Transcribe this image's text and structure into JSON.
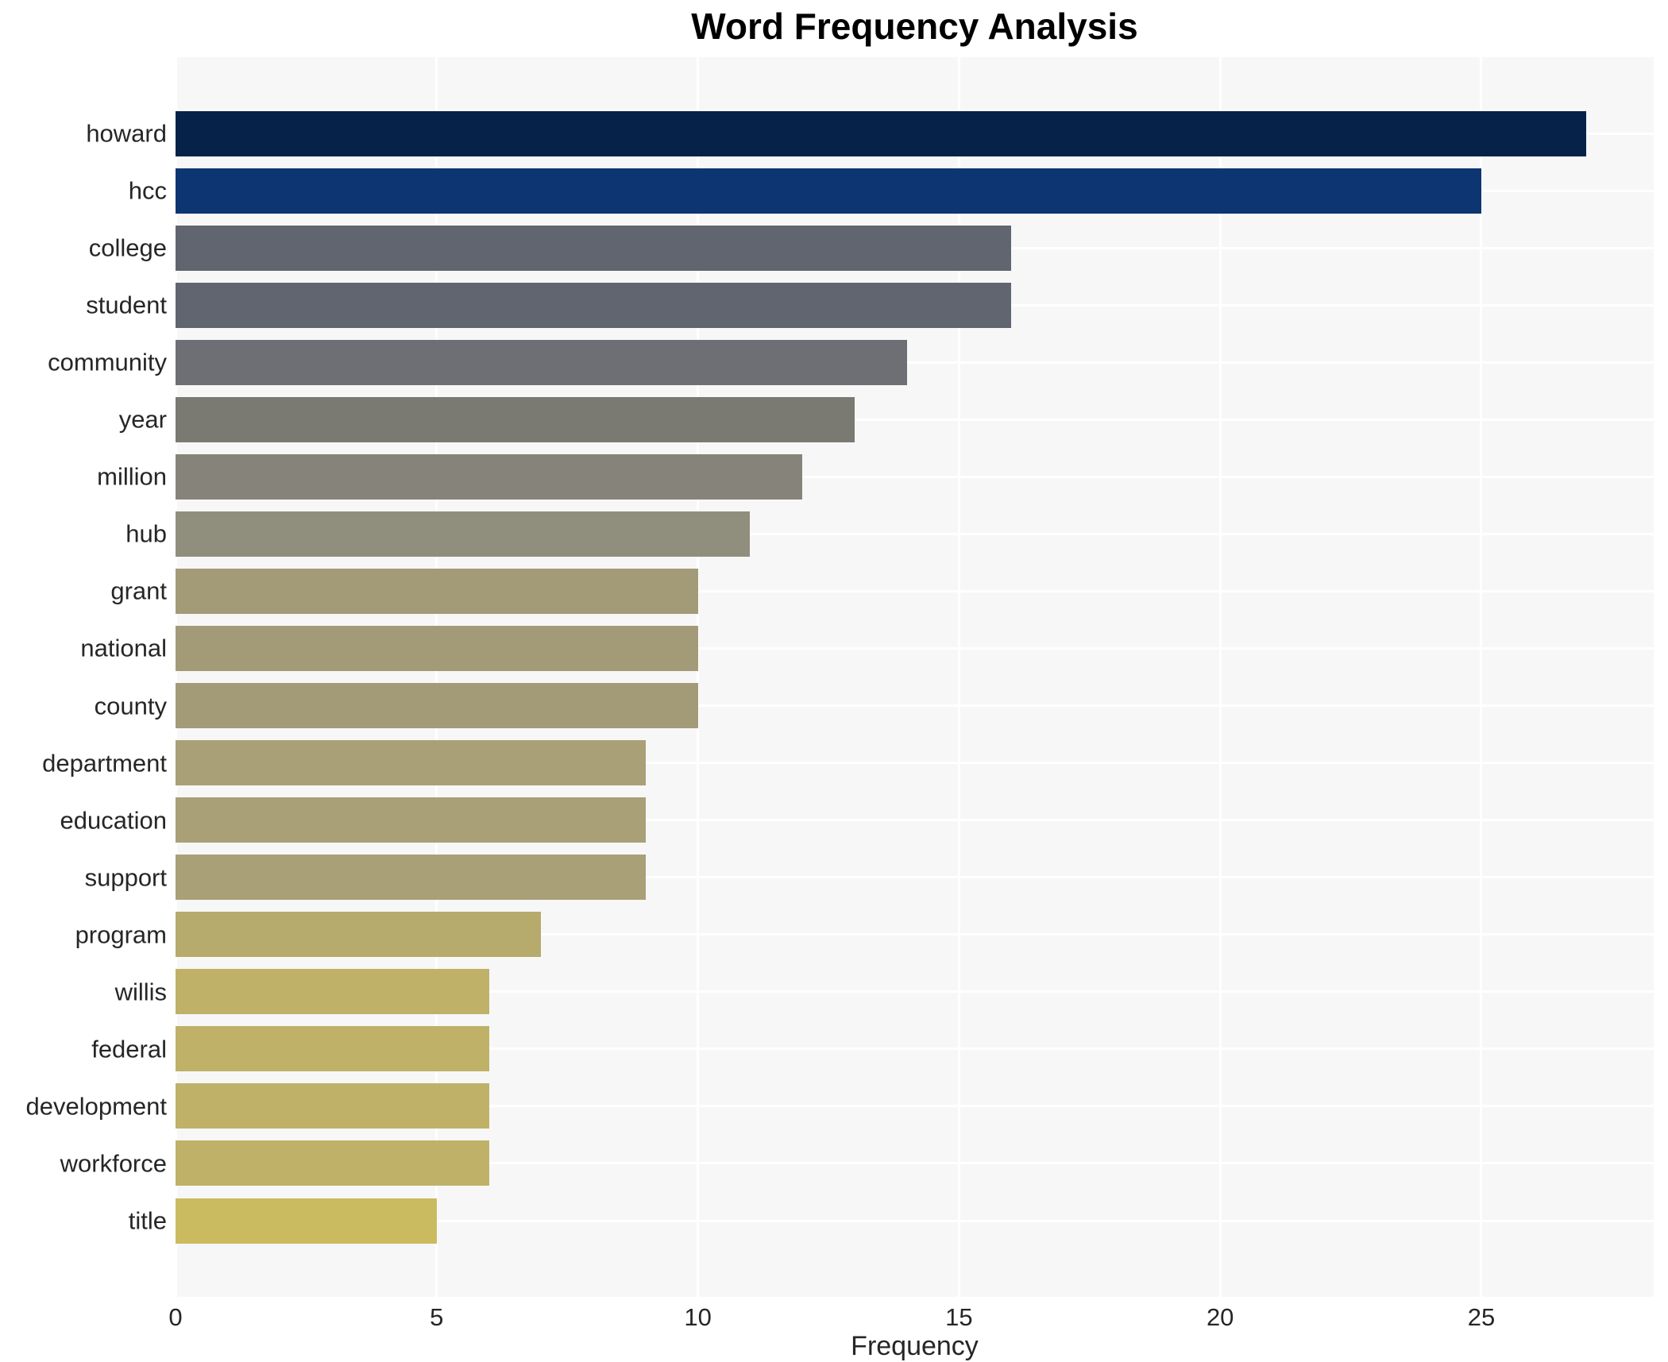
{
  "chart_data": {
    "type": "bar",
    "orientation": "horizontal",
    "title": "Word Frequency Analysis",
    "xlabel": "Frequency",
    "ylabel": "",
    "xlim": [
      0,
      28.3
    ],
    "xticks": [
      0,
      5,
      10,
      15,
      20,
      25
    ],
    "grid": true,
    "legend": null,
    "categories": [
      "howard",
      "hcc",
      "college",
      "student",
      "community",
      "year",
      "million",
      "hub",
      "grant",
      "national",
      "county",
      "department",
      "education",
      "support",
      "program",
      "willis",
      "federal",
      "development",
      "workforce",
      "title"
    ],
    "values": [
      27,
      25,
      16,
      16,
      14,
      13,
      12,
      11,
      10,
      10,
      10,
      9,
      9,
      9,
      7,
      6,
      6,
      6,
      6,
      5
    ],
    "bar_colors": [
      "#062248",
      "#0d3572",
      "#61656f",
      "#61656f",
      "#6d6f74",
      "#7a7a73",
      "#86847a",
      "#908e7d",
      "#a39b77",
      "#a39b77",
      "#a39b77",
      "#a9a077",
      "#a9a077",
      "#a9a077",
      "#b6aa6d",
      "#bfb168",
      "#bfb168",
      "#bfb168",
      "#bfb168",
      "#cabb61"
    ]
  },
  "styles": {
    "plot_background": "#f7f7f7",
    "grid_color": "#ffffff",
    "text_color": "#262626",
    "title_color": "#000000"
  }
}
